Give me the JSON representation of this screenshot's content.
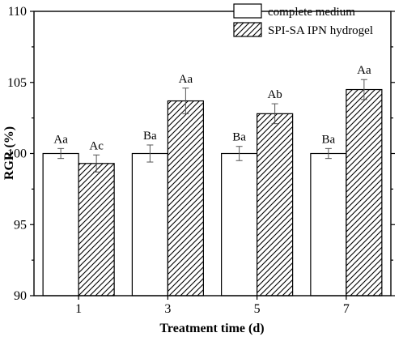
{
  "chart_data": {
    "type": "bar",
    "xlabel": "Treatment time (d)",
    "ylabel": "RGR (%)",
    "ylim": [
      90,
      110
    ],
    "yticks": [
      90,
      95,
      100,
      105,
      110
    ],
    "categories": [
      "1",
      "3",
      "5",
      "7"
    ],
    "legend_position": "top-right",
    "series": [
      {
        "name": "complete medium",
        "pattern": "solid-white",
        "values": [
          100.0,
          100.0,
          100.0,
          100.0
        ],
        "errors": [
          0.35,
          0.6,
          0.5,
          0.35
        ],
        "labels": [
          "Aa",
          "Ba",
          "Ba",
          "Ba"
        ]
      },
      {
        "name": "SPI-SA IPN hydrogel",
        "pattern": "diagonal-hatch",
        "values": [
          99.3,
          103.7,
          102.8,
          104.5
        ],
        "errors": [
          0.6,
          0.9,
          0.7,
          0.7
        ],
        "labels": [
          "Ac",
          "Aa",
          "Ab",
          "Aa"
        ]
      }
    ]
  }
}
